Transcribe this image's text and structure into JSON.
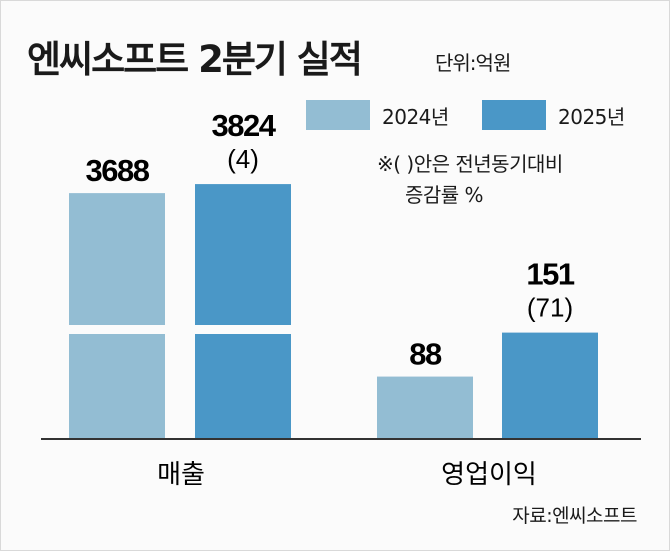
{
  "title": "엔씨소프트 2분기 실적",
  "unit": "단위:억원",
  "note_line1": "※(   )안은 전년동기대비",
  "note_line2": "증감률 %",
  "source": "자료:엔씨소프트",
  "chart_data": {
    "type": "bar",
    "title": "엔씨소프트 2분기 실적",
    "categories": [
      "매출",
      "영업이익"
    ],
    "series": [
      {
        "name": "2024년",
        "color": "#93bdd3",
        "values": [
          3688,
          88
        ],
        "labels": [
          "3688",
          "88"
        ],
        "changes": [
          "",
          ""
        ]
      },
      {
        "name": "2025년",
        "color": "#4a97c7",
        "values": [
          3824,
          151
        ],
        "labels": [
          "3824",
          "151"
        ],
        "changes": [
          "(4)",
          "(71)"
        ]
      }
    ],
    "broken_axis": true,
    "grid": false,
    "legend_position": "top-right"
  }
}
